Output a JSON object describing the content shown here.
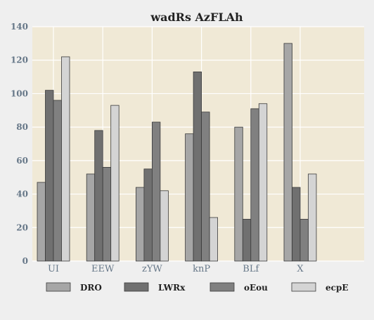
{
  "chart_data": {
    "type": "bar",
    "title": "wadRs AzFLAh",
    "xlabel": "",
    "ylabel": "",
    "categories": [
      "UI",
      "EEW",
      "zYW",
      "knP",
      "BLf",
      "X"
    ],
    "ylim": [
      0,
      140
    ],
    "yticks": [
      0,
      20,
      40,
      60,
      80,
      100,
      120,
      140
    ],
    "grid": true,
    "legend_position": "bottom",
    "background": "#f0e9d6",
    "series": [
      {
        "name": "DRO",
        "color": "#a6a6a6",
        "values": [
          47,
          52,
          44,
          76,
          80,
          130
        ]
      },
      {
        "name": "LWRx",
        "color": "#707070",
        "values": [
          102,
          78,
          55,
          113,
          25,
          44
        ]
      },
      {
        "name": "oEou",
        "color": "#808080",
        "values": [
          96,
          56,
          83,
          89,
          91,
          25
        ]
      },
      {
        "name": "ecpE",
        "color": "#d4d4d4",
        "values": [
          122,
          93,
          42,
          26,
          94,
          52
        ]
      }
    ]
  }
}
